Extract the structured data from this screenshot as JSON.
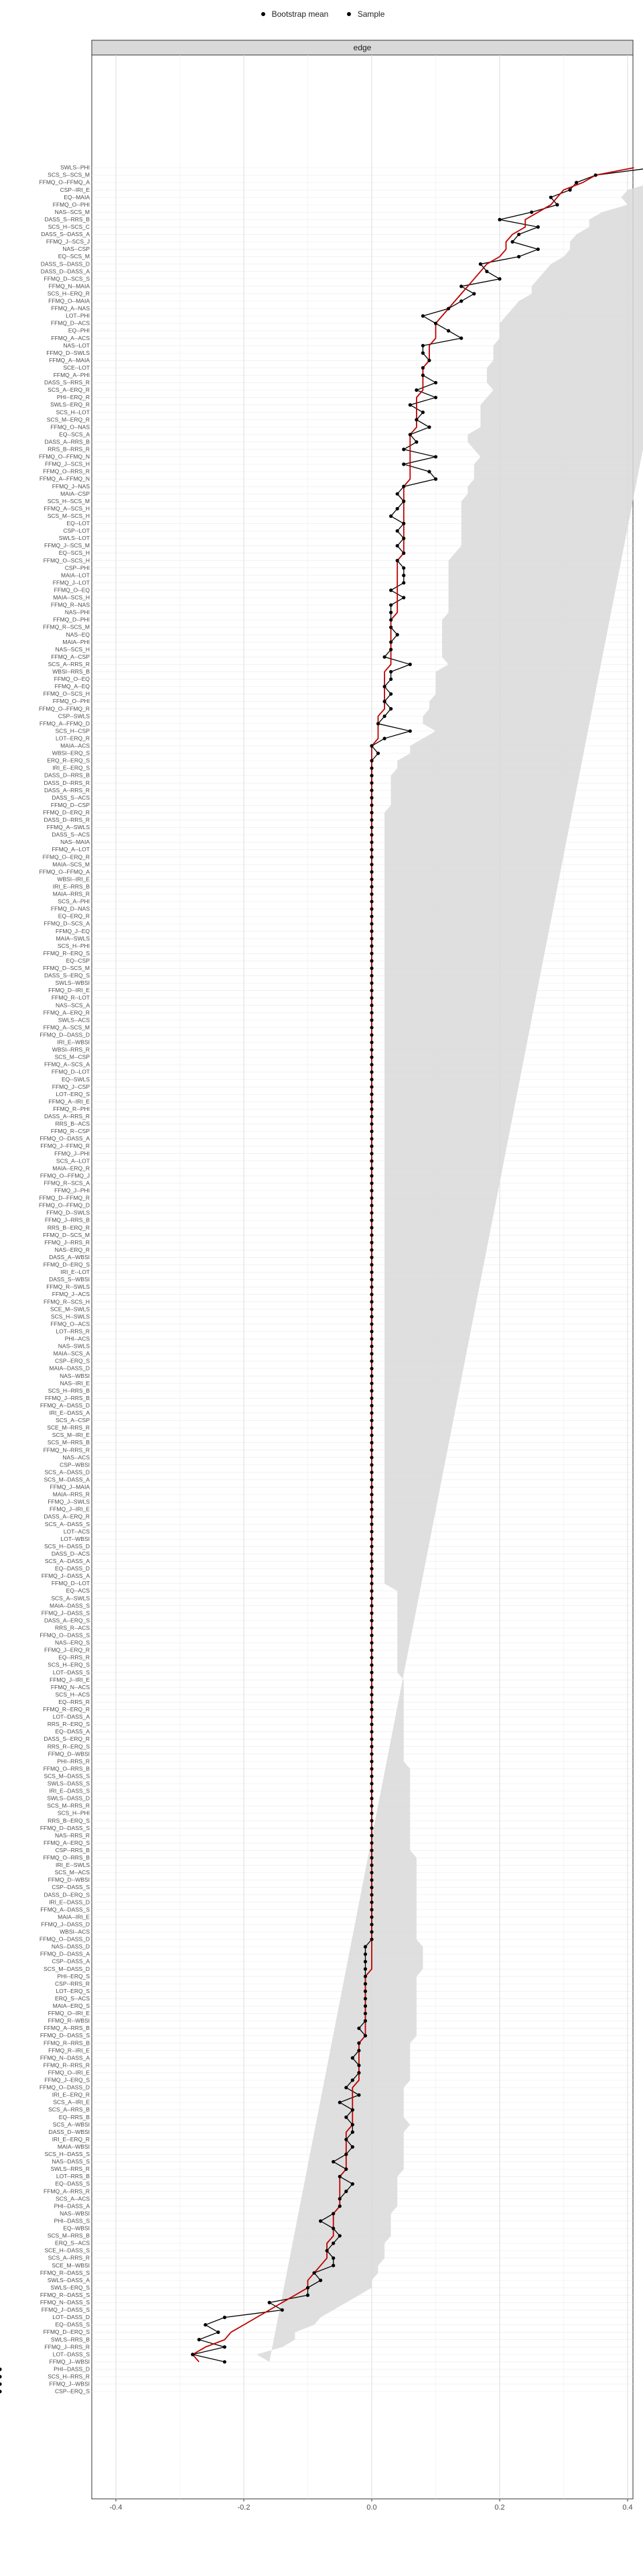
{
  "legend": {
    "items": [
      "Bootstrap mean",
      "Sample"
    ]
  },
  "panel_title": "edge",
  "chart_data": {
    "type": "line",
    "title": "",
    "xlabel": "",
    "ylabel": "",
    "facet": "edge",
    "xlim": [
      -0.4,
      0.4
    ],
    "x_ticks": [
      -0.4,
      -0.2,
      0.0,
      0.2,
      0.4
    ],
    "x_tick_labels": [
      "-0.4",
      "-0.2",
      "0.0",
      "0.2",
      "0.4"
    ],
    "grid": true,
    "legend_position": "top",
    "colors": {
      "bootstrap": "#c00000",
      "sample": "#000000",
      "ci_band": "#d9d9d9",
      "panel_strip": "#d9d9d9"
    },
    "series_names": [
      "Bootstrap mean",
      "Sample"
    ],
    "categories": [
      "SWLS--PHI",
      "SCS_S--SCS_M",
      "FFMQ_O--FFMQ_A",
      "CSP--IRI_E",
      "EQ--MAIA",
      "FFMQ_O--PHI",
      "NAS--SCS_M",
      "DASS_S--RRS_B",
      "SCS_H--SCS_C",
      "DASS_S--DASS_A",
      "FFMQ_J--SCS_J",
      "NAS--CSP",
      "EQ--SCS_M",
      "DASS_S--DASS_D",
      "DASS_D--DASS_A",
      "FFMQ_D--SCS_S",
      "FFMQ_N--MAIA",
      "SCS_H--ERQ_R",
      "FFMQ_O--MAIA",
      "FFMQ_A--NAS",
      "LOT--PHI",
      "FFMQ_D--ACS",
      "EQ--PHI",
      "FFMQ_A--ACS",
      "NAS--LOT",
      "FFMQ_D--SWLS",
      "FFMQ_A--MAIA",
      "SCE--LOT",
      "FFMQ_A--PHI",
      "DASS_S--RRS_R",
      "SCS_A--ERQ_R",
      "PHI--ERQ_R",
      "SWLS--ERQ_R",
      "SCS_H--LOT",
      "SCS_M--ERQ_R",
      "FFMQ_O--NAS",
      "EQ--SCS_A",
      "DASS_A--RRS_B",
      "RRS_B--RRS_R",
      "FFMQ_O--FFMQ_N",
      "FFMQ_J--SCS_H",
      "FFMQ_O--RRS_R",
      "FFMQ_A--FFMQ_N",
      "FFMQ_J--NAS",
      "MAIA--CSP",
      "SCS_H--SCS_M",
      "FFMQ_A--SCS_H",
      "SCS_M--SCS_H",
      "EQ--LOT",
      "CSP--LOT",
      "SWLS--LOT",
      "FFMQ_J--SCS_M",
      "EQ--SCS_H",
      "FFMQ_O--SCS_H",
      "CSP--PHI",
      "MAIA--LOT",
      "FFMQ_J--LOT",
      "FFMQ_O--EQ",
      "MAIA--SCS_H",
      "FFMQ_R--NAS",
      "NAS--PHI",
      "FFMQ_D--PHI",
      "FFMQ_R--SCS_M",
      "NAS--EQ",
      "MAIA--PHI",
      "NAS--SCS_H",
      "FFMQ_A--CSP",
      "SCS_A--RRS_R",
      "WBSI--RRS_B",
      "FFMQ_O--EQ",
      "FFMQ_A--EQ",
      "FFMQ_O--SCS_H",
      "FFMQ_O--PHI",
      "FFMQ_O--FFMQ_R",
      "CSP--SWLS",
      "FFMQ_A--FFMQ_D",
      "SCS_H--CSP",
      "LOT--ERQ_R",
      "MAIA--ACS",
      "WBSI--ERQ_S",
      "ERQ_R--ERQ_S",
      "IRI_E--ERQ_S",
      "DASS_D--RRS_B",
      "DASS_D--RRS_R",
      "DASS_A--RRS_R",
      "DASS_S--ACS",
      "FFMQ_D--CSP",
      "FFMQ_D--ERQ_R",
      "DASS_D--RRS_R",
      "FFMQ_A--SWLS",
      "DASS_S--ACS",
      "NAS--MAIA",
      "FFMQ_A--LOT",
      "FFMQ_O--ERQ_R",
      "MAIA--SCS_M",
      "FFMQ_O--FFMQ_A",
      "WBSI--IRI_E",
      "IRI_E--RRS_B",
      "MAIA--RRS_R",
      "SCS_A--PHI",
      "FFMQ_D--NAS",
      "EQ--ERQ_R",
      "FFMQ_D--SCS_A",
      "FFMQ_J--EQ",
      "MAIA--SWLS",
      "SCS_H--PHI",
      "FFMQ_R--ERQ_S",
      "EQ--CSP",
      "FFMQ_D--SCS_M",
      "DASS_S--ERQ_S",
      "SWLS--WBSI",
      "FFMQ_D--IRI_E",
      "FFMQ_R--LOT",
      "NAS--SCS_A",
      "FFMQ_A--ERQ_R",
      "SWLS--ACS",
      "FFMQ_A--SCS_M",
      "FFMQ_D--DASS_D",
      "IRI_E--WBSI",
      "WBSI--RRS_R",
      "SCS_M--CSP",
      "FFMQ_A--SCS_A",
      "FFMQ_D--LOT",
      "EQ--SWLS",
      "FFMQ_J--CSP",
      "LOT--ERQ_S",
      "FFMQ_A--IRI_E",
      "FFMQ_R--PHI",
      "DASS_A--RRS_R",
      "RRS_B--ACS",
      "FFMQ_R--CSP",
      "FFMQ_O--DASS_A",
      "FFMQ_J--FFMQ_R",
      "FFMQ_J--PHI",
      "SCS_A--LOT",
      "MAIA--ERQ_R",
      "FFMQ_O--FFMQ_J",
      "FFMQ_R--SCS_A",
      "FFMQ_J--PHI",
      "FFMQ_D--FFMQ_R",
      "FFMQ_O--FFMQ_D",
      "FFMQ_D--SWLS",
      "FFMQ_J--RRS_B",
      "RRS_B--ERQ_R",
      "FFMQ_D--SCS_M",
      "FFMQ_J--RRS_R",
      "NAS--ERQ_R",
      "DASS_A--WBSI",
      "FFMQ_D--ERQ_S",
      "IRI_E--LOT",
      "DASS_S--WBSI",
      "FFMQ_R--SWLS",
      "FFMQ_J--ACS",
      "FFMQ_R--SCS_H",
      "SCE_M--SWLS",
      "SCS_H--SWLS",
      "FFMQ_O--ACS",
      "LOT--RRS_R",
      "PHI--ACS",
      "NAS--SWLS",
      "MAIA--SCS_A",
      "CSP--ERQ_S",
      "MAIA--DASS_D",
      "NAS--WBSI",
      "NAS--IRI_E",
      "SCS_H--RRS_B",
      "FFMQ_J--RRS_B",
      "FFMQ_A--DASS_D",
      "IRI_E--DASS_A",
      "SCS_A--CSP",
      "SCE_M--RRS_R",
      "SCS_M--IRI_E",
      "SCS_M--RRS_B",
      "FFMQ_N--RRS_R",
      "NAS--ACS",
      "CSP--WBSI",
      "SCS_A--DASS_D",
      "SCS_M--DASS_A",
      "FFMQ_J--MAIA",
      "MAIA--RRS_R",
      "FFMQ_J--SWLS",
      "FFMQ_J--IRI_E",
      "DASS_A--ERQ_R",
      "SCS_A--DASS_S",
      "LOT--ACS",
      "LOT--WBSI",
      "SCS_H--DASS_D",
      "DASS_D--ACS",
      "SCS_A--DASS_A",
      "EQ--DASS_D",
      "FFMQ_J--DASS_A",
      "FFMQ_D--LOT",
      "EQ--ACS",
      "SCS_A--SWLS",
      "MAIA--DASS_S",
      "FFMQ_J--DASS_S",
      "DASS_A--ERQ_S",
      "RRS_R--ACS",
      "FFMQ_O--DASS_S",
      "NAS--ERQ_S",
      "FFMQ_J--ERQ_R",
      "EQ--RRS_R",
      "SCS_H--ERQ_S",
      "LOT--DASS_S",
      "FFMQ_J--IRI_E",
      "FFMQ_N--ACS",
      "SCS_H--ACS",
      "EQ--RRS_R",
      "FFMQ_R--ERQ_R",
      "LOT--DASS_A",
      "RRS_R--ERQ_S",
      "EQ--DASS_A",
      "DASS_S--ERQ_R",
      "RRS_R--ERQ_S",
      "FFMQ_D--WBSI",
      "PHI--RRS_R",
      "FFMQ_O--RRS_B",
      "SCS_M--DASS_S",
      "SWLS--DASS_S",
      "IRI_E--DASS_S",
      "SWLS--DASS_D",
      "SCS_M--RRS_R",
      "SCS_H--PHI",
      "RRS_B--ERQ_S",
      "FFMQ_D--DASS_S",
      "NAS--RRS_R",
      "FFMQ_A--ERQ_S",
      "CSP--RRS_B",
      "FFMQ_O--RRS_B",
      "IRI_E--SWLS",
      "SCS_M--ACS",
      "FFMQ_D--WBSI",
      "CSP--DASS_S",
      "DASS_D--ERQ_S",
      "IRI_E--DASS_D",
      "FFMQ_A--DASS_S",
      "MAIA--IRI_E",
      "FFMQ_J--DASS_D",
      "WBSI--ACS",
      "FFMQ_O--DASS_D",
      "NAS--DASS_D",
      "FFMQ_D--DASS_A",
      "CSP--DASS_A",
      "SCS_M--DASS_D",
      "PHI--ERQ_S",
      "CSP--RRS_R",
      "LOT--ERQ_S",
      "ERQ_S--ACS",
      "MAIA--ERQ_S",
      "FFMQ_O--IRI_E",
      "FFMQ_R--WBSI",
      "FFMQ_A--RRS_B",
      "FFMQ_D--DASS_S",
      "FFMQ_R--RRS_B",
      "FFMQ_R--IRI_E",
      "FFMQ_N--DASS_A",
      "FFMQ_R--RRS_R",
      "FFMQ_O--IRI_E",
      "FFMQ_J--ERQ_S",
      "FFMQ_O--DASS_D",
      "IRI_E--ERQ_R",
      "SCS_A--IRI_E",
      "SCS_A--RRS_B",
      "EQ--RRS_B",
      "SCS_A--WBSI",
      "DASS_D--WBSI",
      "IRI_E--ERQ_R",
      "MAIA--WBSI",
      "SCS_H--DASS_S",
      "NAS--DASS_S",
      "SWLS--RRS_R",
      "LOT--RRS_B",
      "EQ--DASS_S",
      "FFMQ_A--RRS_R",
      "SCS_A--ACS",
      "PHI--DASS_A",
      "NAS--WBSI",
      "PHI--DASS_S",
      "EQ--WBSI",
      "SCS_M--RRS_B",
      "ERQ_S--ACS",
      "SCE_H--DASS_S",
      "SCS_A--RRS_R",
      "SCE_M--WBSI",
      "FFMQ_R--DASS_S",
      "SWLS--DASS_A",
      "SWLS--ERQ_S",
      "FFMQ_R--DASS_S",
      "FFMQ_N--DASS_S",
      "FFMQ_J--DASS_S",
      "LOT--DASS_D",
      "EQ--DASS_S",
      "FFMQ_D--ERQ_S",
      "SWLS--RRS_B",
      "FFMQ_J--RRS_R",
      "LOT--DASS_S",
      "FFMQ_J--WBSI",
      "PHI--DASS_D",
      "SCS_H--RRS_R",
      "FFMQ_J--WBSI",
      "CSP--ERQ_S"
    ],
    "sample": [
      0.44,
      0.35,
      0.32,
      0.31,
      0.28,
      0.29,
      0.25,
      0.2,
      0.26,
      0.23,
      0.22,
      0.26,
      0.23,
      0.17,
      0.18,
      0.2,
      0.14,
      0.16,
      0.14,
      0.12,
      0.08,
      0.1,
      0.12,
      0.14,
      0.08,
      0.08,
      0.09,
      0.08,
      0.08,
      0.1,
      0.07,
      0.1,
      0.06,
      0.08,
      0.07,
      0.09,
      0.06,
      0.07,
      0.05,
      0.1,
      0.05,
      0.09,
      0.1,
      0.05,
      0.04,
      0.05,
      0.04,
      0.03,
      0.05,
      0.04,
      0.05,
      0.04,
      0.05,
      0.04,
      0.05,
      0.05,
      0.05,
      0.03,
      0.05,
      0.03,
      0.03,
      0.03,
      0.03,
      0.04,
      0.03,
      0.03,
      0.02,
      0.06,
      0.03,
      0.03,
      0.02,
      0.03,
      0.02,
      0.03,
      0.02,
      0.01,
      0.06,
      0.02,
      0.0,
      0.01,
      0.0,
      0.0,
      0.0,
      0.0,
      0.0,
      0.0,
      0.0,
      0.0,
      0.0,
      0.0,
      0.0,
      0.0,
      0.0,
      0.0,
      0.0,
      0.0,
      0.0,
      0.0,
      0.0,
      0.0,
      0.0,
      0.0,
      0.0,
      0.0,
      0.0,
      0.0,
      0.0,
      0.0,
      0.0,
      0.0,
      0.0,
      0.0,
      0.0,
      0.0,
      0.0,
      0.0,
      0.0,
      0.0,
      0.0,
      0.0,
      0.0,
      0.0,
      0.0,
      0.0,
      0.0,
      0.0,
      0.0,
      0.0,
      0.0,
      0.0,
      0.0,
      0.0,
      0.0,
      0.0,
      0.0,
      0.0,
      0.0,
      0.0,
      0.0,
      0.0,
      0.0,
      0.0,
      0.0,
      0.0,
      0.0,
      0.0,
      0.0,
      0.0,
      0.0,
      0.0,
      0.0,
      0.0,
      0.0,
      0.0,
      0.0,
      0.0,
      0.0,
      0.0,
      0.0,
      0.0,
      0.0,
      0.0,
      0.0,
      0.0,
      0.0,
      0.0,
      0.0,
      0.0,
      0.0,
      0.0,
      0.0,
      0.0,
      0.0,
      0.0,
      0.0,
      0.0,
      0.0,
      0.0,
      0.0,
      0.0,
      0.0,
      0.0,
      0.0,
      0.0,
      0.0,
      0.0,
      0.0,
      0.0,
      0.0,
      0.0,
      0.0,
      0.0,
      0.0,
      0.0,
      0.0,
      0.0,
      0.0,
      0.0,
      0.0,
      0.0,
      0.0,
      0.0,
      0.0,
      0.0,
      0.0,
      0.0,
      0.0,
      0.0,
      0.0,
      0.0,
      0.0,
      0.0,
      0.0,
      0.0,
      0.0,
      0.0,
      0.0,
      0.0,
      0.0,
      0.0,
      0.0,
      0.0,
      0.0,
      0.0,
      0.0,
      0.0,
      0.0,
      0.0,
      0.0,
      0.0,
      0.0,
      0.0,
      0.0,
      0.0,
      0.0,
      0.0,
      0.0,
      0.0,
      0.0,
      0.0,
      -0.01,
      -0.01,
      -0.01,
      -0.01,
      -0.01,
      -0.01,
      -0.01,
      -0.01,
      -0.01,
      -0.01,
      -0.01,
      -0.02,
      -0.01,
      -0.02,
      -0.02,
      -0.03,
      -0.02,
      -0.02,
      -0.03,
      -0.04,
      -0.02,
      -0.05,
      -0.03,
      -0.04,
      -0.03,
      -0.03,
      -0.04,
      -0.03,
      -0.04,
      -0.06,
      -0.04,
      -0.05,
      -0.03,
      -0.04,
      -0.05,
      -0.05,
      -0.06,
      -0.08,
      -0.06,
      -0.05,
      -0.06,
      -0.07,
      -0.06,
      -0.06,
      -0.09,
      -0.08,
      -0.1,
      -0.1,
      -0.16,
      -0.14,
      -0.23,
      -0.26,
      -0.24,
      -0.27,
      -0.23,
      -0.28,
      -0.23
    ],
    "bootstrap_mean": [
      0.41,
      0.35,
      0.33,
      0.3,
      0.29,
      0.28,
      0.26,
      0.24,
      0.24,
      0.22,
      0.21,
      0.21,
      0.2,
      0.18,
      0.17,
      0.16,
      0.15,
      0.14,
      0.13,
      0.12,
      0.11,
      0.1,
      0.1,
      0.1,
      0.09,
      0.09,
      0.09,
      0.08,
      0.08,
      0.08,
      0.08,
      0.07,
      0.07,
      0.07,
      0.07,
      0.07,
      0.06,
      0.06,
      0.06,
      0.06,
      0.06,
      0.06,
      0.06,
      0.05,
      0.05,
      0.05,
      0.05,
      0.05,
      0.05,
      0.05,
      0.05,
      0.05,
      0.05,
      0.04,
      0.04,
      0.04,
      0.04,
      0.04,
      0.04,
      0.04,
      0.04,
      0.03,
      0.03,
      0.03,
      0.03,
      0.03,
      0.03,
      0.03,
      0.02,
      0.02,
      0.02,
      0.02,
      0.02,
      0.02,
      0.01,
      0.01,
      0.01,
      0.01,
      0.0,
      0.0,
      0.0,
      0.0,
      0.0,
      0.0,
      0.0,
      0.0,
      0.0,
      0.0,
      0.0,
      0.0,
      0.0,
      0.0,
      0.0,
      0.0,
      0.0,
      0.0,
      0.0,
      0.0,
      0.0,
      0.0,
      0.0,
      0.0,
      0.0,
      0.0,
      0.0,
      0.0,
      0.0,
      0.0,
      0.0,
      0.0,
      0.0,
      0.0,
      0.0,
      0.0,
      0.0,
      0.0,
      0.0,
      0.0,
      0.0,
      0.0,
      0.0,
      0.0,
      0.0,
      0.0,
      0.0,
      0.0,
      0.0,
      0.0,
      0.0,
      0.0,
      0.0,
      0.0,
      0.0,
      0.0,
      0.0,
      0.0,
      0.0,
      0.0,
      0.0,
      0.0,
      0.0,
      0.0,
      0.0,
      0.0,
      0.0,
      0.0,
      0.0,
      0.0,
      0.0,
      0.0,
      0.0,
      0.0,
      0.0,
      0.0,
      0.0,
      0.0,
      0.0,
      0.0,
      0.0,
      0.0,
      0.0,
      0.0,
      0.0,
      0.0,
      0.0,
      0.0,
      0.0,
      0.0,
      0.0,
      0.0,
      0.0,
      0.0,
      0.0,
      0.0,
      0.0,
      0.0,
      0.0,
      0.0,
      0.0,
      0.0,
      0.0,
      0.0,
      0.0,
      0.0,
      0.0,
      0.0,
      0.0,
      0.0,
      0.0,
      0.0,
      0.0,
      0.0,
      0.0,
      0.0,
      0.0,
      0.0,
      0.0,
      0.0,
      0.0,
      0.0,
      0.0,
      0.0,
      0.0,
      0.0,
      0.0,
      0.0,
      0.0,
      0.0,
      0.0,
      0.0,
      0.0,
      0.0,
      0.0,
      0.0,
      0.0,
      0.0,
      0.0,
      0.0,
      0.0,
      0.0,
      0.0,
      0.0,
      0.0,
      0.0,
      0.0,
      0.0,
      0.0,
      0.0,
      0.0,
      0.0,
      0.0,
      0.0,
      0.0,
      0.0,
      0.0,
      0.0,
      0.0,
      0.0,
      0.0,
      0.0,
      0.0,
      0.0,
      0.0,
      0.0,
      -0.01,
      -0.01,
      -0.01,
      -0.01,
      -0.01,
      -0.01,
      -0.01,
      -0.01,
      -0.01,
      -0.02,
      -0.02,
      -0.02,
      -0.02,
      -0.02,
      -0.02,
      -0.03,
      -0.03,
      -0.03,
      -0.03,
      -0.03,
      -0.03,
      -0.04,
      -0.04,
      -0.04,
      -0.04,
      -0.04,
      -0.04,
      -0.05,
      -0.05,
      -0.05,
      -0.05,
      -0.05,
      -0.06,
      -0.06,
      -0.06,
      -0.06,
      -0.07,
      -0.07,
      -0.07,
      -0.08,
      -0.09,
      -0.1,
      -0.1,
      -0.12,
      -0.14,
      -0.16,
      -0.18,
      -0.2,
      -0.22,
      -0.23,
      -0.26,
      -0.28,
      -0.27
    ],
    "ci_halfwidth": [
      0.1,
      0.11,
      0.11,
      0.1,
      0.1,
      0.12,
      0.1,
      0.1,
      0.1,
      0.1,
      0.1,
      0.1,
      0.1,
      0.1,
      0.1,
      0.1,
      0.1,
      0.11,
      0.1,
      0.1,
      0.1,
      0.1,
      0.1,
      0.1,
      0.1,
      0.1,
      0.1,
      0.1,
      0.1,
      0.1,
      0.11,
      0.11,
      0.1,
      0.1,
      0.1,
      0.1,
      0.09,
      0.09,
      0.1,
      0.11,
      0.1,
      0.1,
      0.1,
      0.1,
      0.1,
      0.09,
      0.09,
      0.09,
      0.09,
      0.09,
      0.09,
      0.09,
      0.08,
      0.08,
      0.08,
      0.08,
      0.08,
      0.08,
      0.08,
      0.08,
      0.08,
      0.08,
      0.08,
      0.08,
      0.08,
      0.08,
      0.08,
      0.09,
      0.08,
      0.08,
      0.08,
      0.08,
      0.07,
      0.07,
      0.07,
      0.07,
      0.09,
      0.07,
      0.06,
      0.06,
      0.04,
      0.04,
      0.03,
      0.03,
      0.03,
      0.03,
      0.03,
      0.02,
      0.02,
      0.02,
      0.02,
      0.02,
      0.02,
      0.02,
      0.02,
      0.02,
      0.02,
      0.02,
      0.02,
      0.02,
      0.02,
      0.02,
      0.02,
      0.02,
      0.02,
      0.02,
      0.02,
      0.02,
      0.02,
      0.02,
      0.02,
      0.02,
      0.02,
      0.02,
      0.02,
      0.02,
      0.02,
      0.02,
      0.02,
      0.02,
      0.02,
      0.02,
      0.02,
      0.02,
      0.02,
      0.02,
      0.02,
      0.02,
      0.02,
      0.02,
      0.02,
      0.02,
      0.02,
      0.02,
      0.02,
      0.02,
      0.02,
      0.02,
      0.02,
      0.02,
      0.02,
      0.02,
      0.02,
      0.02,
      0.02,
      0.02,
      0.02,
      0.02,
      0.02,
      0.02,
      0.02,
      0.02,
      0.02,
      0.02,
      0.02,
      0.02,
      0.02,
      0.02,
      0.02,
      0.02,
      0.02,
      0.02,
      0.02,
      0.02,
      0.02,
      0.02,
      0.02,
      0.02,
      0.02,
      0.02,
      0.02,
      0.02,
      0.02,
      0.02,
      0.02,
      0.02,
      0.02,
      0.02,
      0.02,
      0.02,
      0.02,
      0.02,
      0.02,
      0.02,
      0.02,
      0.02,
      0.02,
      0.02,
      0.02,
      0.02,
      0.02,
      0.02,
      0.04,
      0.04,
      0.04,
      0.04,
      0.04,
      0.04,
      0.04,
      0.04,
      0.04,
      0.04,
      0.04,
      0.04,
      0.05,
      0.05,
      0.05,
      0.05,
      0.05,
      0.05,
      0.05,
      0.05,
      0.05,
      0.05,
      0.05,
      0.05,
      0.06,
      0.06,
      0.06,
      0.06,
      0.06,
      0.06,
      0.06,
      0.06,
      0.06,
      0.06,
      0.06,
      0.06,
      0.07,
      0.07,
      0.07,
      0.07,
      0.07,
      0.07,
      0.07,
      0.07,
      0.07,
      0.07,
      0.07,
      0.07,
      0.08,
      0.08,
      0.08,
      0.08,
      0.08,
      0.08,
      0.08,
      0.08,
      0.08,
      0.08,
      0.08,
      0.08,
      0.08,
      0.08,
      0.08,
      0.08,
      0.08,
      0.08,
      0.08,
      0.08,
      0.08,
      0.08,
      0.08,
      0.08,
      0.09,
      0.09,
      0.09,
      0.09,
      0.09,
      0.09,
      0.09,
      0.09,
      0.09,
      0.09,
      0.09,
      0.09,
      0.09,
      0.09,
      0.09,
      0.09,
      0.09,
      0.09,
      0.09,
      0.09,
      0.1,
      0.1,
      0.1,
      0.1,
      0.1,
      0.1,
      0.1,
      0.11,
      0.1,
      0.11,
      0.12,
      0.1,
      0.11
    ]
  }
}
